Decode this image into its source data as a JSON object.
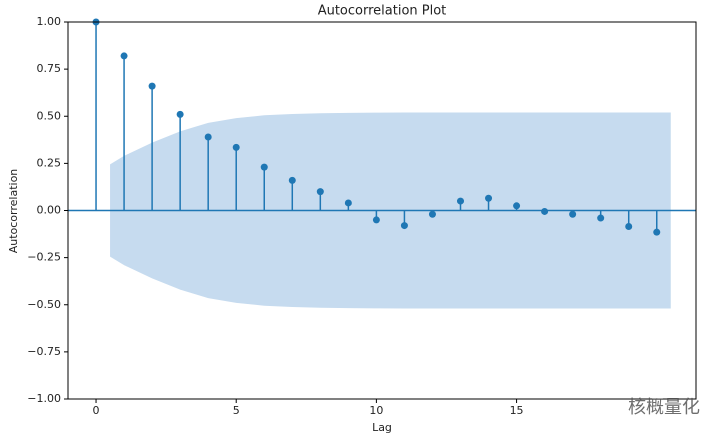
{
  "chart_data": {
    "type": "stem",
    "title": "Autocorrelation Plot",
    "x_label": "Lag",
    "y_label": "Autocorrelation",
    "x": [
      0,
      1,
      2,
      3,
      4,
      5,
      6,
      7,
      8,
      9,
      10,
      11,
      12,
      13,
      14,
      15,
      16,
      17,
      18,
      19,
      20
    ],
    "values": [
      1.0,
      0.82,
      0.66,
      0.51,
      0.39,
      0.335,
      0.23,
      0.16,
      0.1,
      0.04,
      -0.05,
      -0.08,
      -0.02,
      0.05,
      0.065,
      0.025,
      -0.005,
      -0.02,
      -0.04,
      -0.085,
      -0.115
    ],
    "color": "#1f77b4",
    "confidence_band": {
      "color": "#c6dbef",
      "x": [
        0.5,
        1,
        2,
        3,
        4,
        5,
        6,
        7,
        8,
        9,
        10,
        11,
        12,
        13,
        14,
        15,
        16,
        17,
        18,
        19,
        20,
        20.5
      ],
      "upper": [
        0.245,
        0.29,
        0.36,
        0.42,
        0.465,
        0.49,
        0.505,
        0.512,
        0.516,
        0.518,
        0.519,
        0.52,
        0.52,
        0.52,
        0.52,
        0.52,
        0.52,
        0.52,
        0.52,
        0.52,
        0.52,
        0.52
      ],
      "lower": [
        -0.245,
        -0.29,
        -0.36,
        -0.42,
        -0.465,
        -0.49,
        -0.505,
        -0.512,
        -0.516,
        -0.518,
        -0.519,
        -0.52,
        -0.52,
        -0.52,
        -0.52,
        -0.52,
        -0.52,
        -0.52,
        -0.52,
        -0.52,
        -0.52,
        -0.52
      ]
    },
    "xlim": [
      -1,
      21.4
    ],
    "ylim": [
      -1,
      1
    ],
    "xticks": [
      0,
      5,
      10,
      15
    ],
    "yticks": [
      {
        "value": -1,
        "label": "−1.00"
      },
      {
        "value": -0.75,
        "label": "−0.75"
      },
      {
        "value": -0.5,
        "label": "−0.50"
      },
      {
        "value": -0.25,
        "label": "−0.25"
      },
      {
        "value": 0,
        "label": "0.00"
      },
      {
        "value": 0.25,
        "label": "0.25"
      },
      {
        "value": 0.5,
        "label": "0.50"
      },
      {
        "value": 0.75,
        "label": "0.75"
      },
      {
        "value": 1,
        "label": "1.00"
      }
    ],
    "watermark": "核概量化"
  }
}
